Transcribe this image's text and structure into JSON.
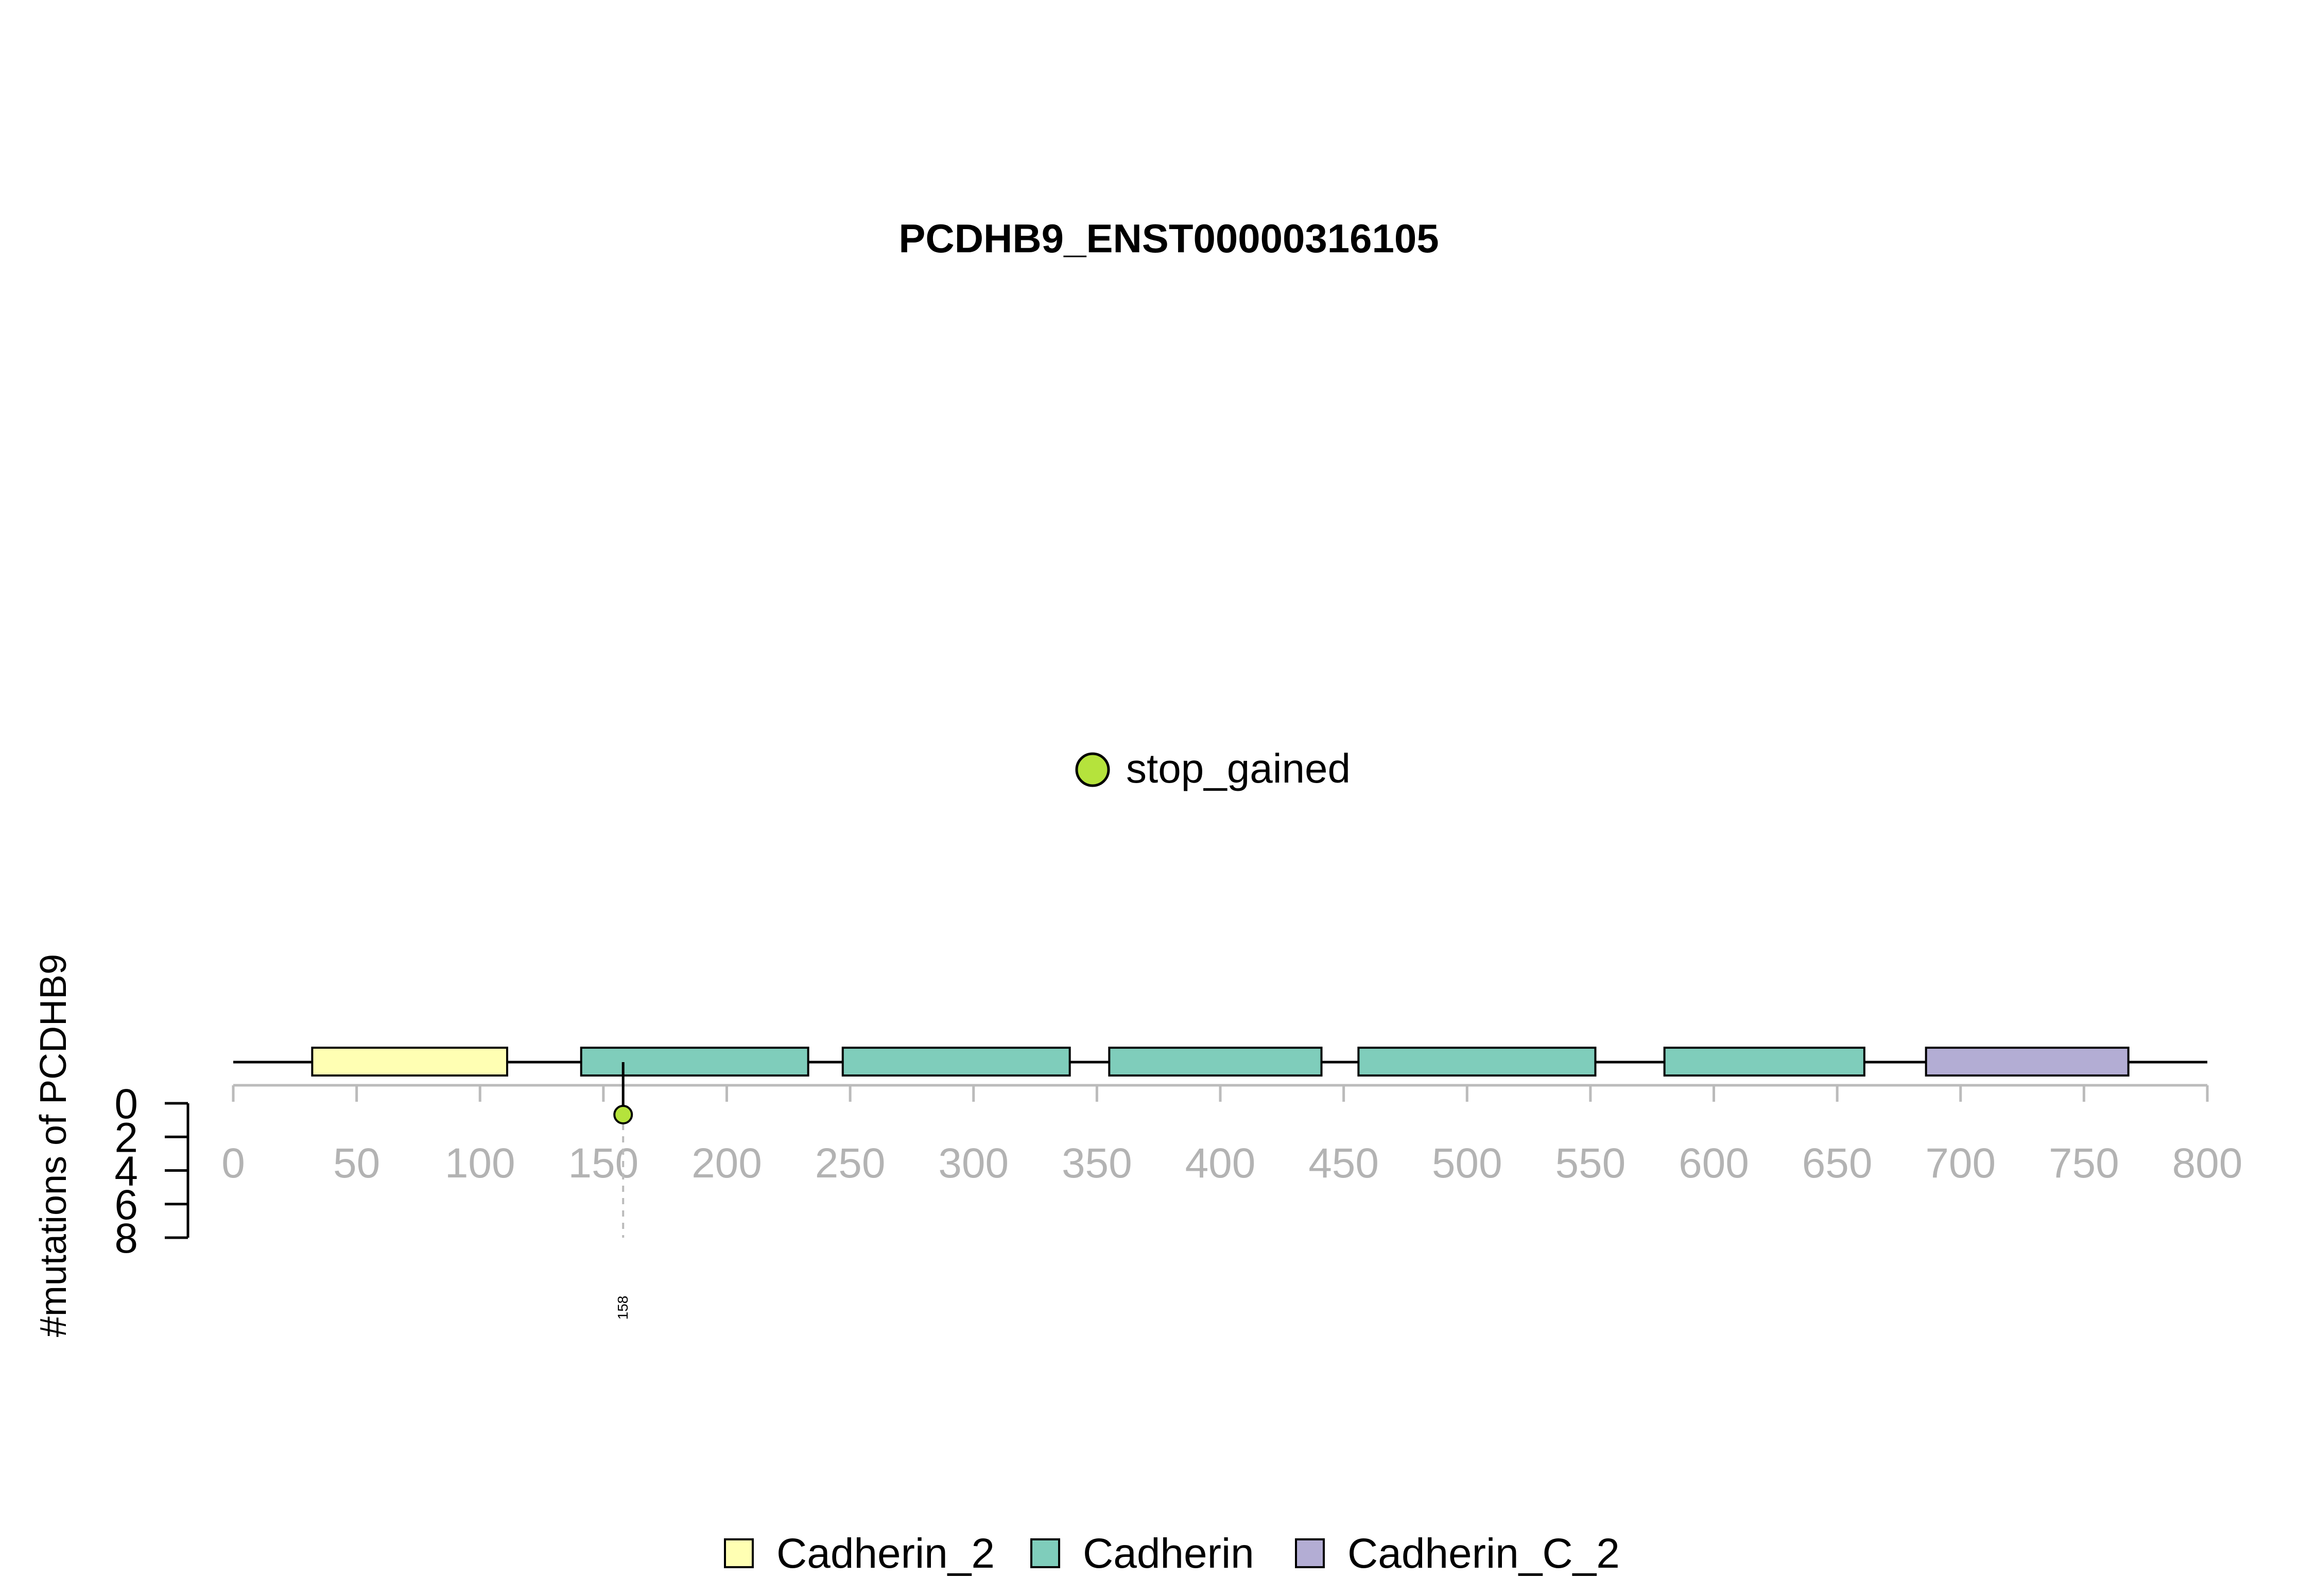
{
  "chart_data": {
    "type": "lollipop",
    "title": "PCDHB9_ENST00000316105",
    "ylabel": "#mutations of PCDHB9",
    "protein_length": 800,
    "x_ticks": [
      0,
      50,
      100,
      150,
      200,
      250,
      300,
      350,
      400,
      450,
      500,
      550,
      600,
      650,
      700,
      750,
      800
    ],
    "y_ticks": [
      0,
      2,
      4,
      6,
      8
    ],
    "ylim": [
      0,
      8
    ],
    "domains": [
      {
        "name": "Cadherin_2",
        "start": 32,
        "end": 111
      },
      {
        "name": "Cadherin",
        "start": 141,
        "end": 233
      },
      {
        "name": "Cadherin",
        "start": 247,
        "end": 339
      },
      {
        "name": "Cadherin",
        "start": 355,
        "end": 441
      },
      {
        "name": "Cadherin",
        "start": 456,
        "end": 552
      },
      {
        "name": "Cadherin",
        "start": 580,
        "end": 661
      },
      {
        "name": "Cadherin_C_2",
        "start": 686,
        "end": 768
      }
    ],
    "mutations": [
      {
        "position": 158,
        "count": 1,
        "type": "stop_gained",
        "label": "158"
      }
    ],
    "mutation_legend": [
      {
        "type": "stop_gained",
        "color": "#B5E33C"
      }
    ],
    "domain_legend": [
      {
        "name": "Cadherin_2",
        "color": "#FFFFB3"
      },
      {
        "name": "Cadherin",
        "color": "#7FCDBB"
      },
      {
        "name": "Cadherin_C_2",
        "color": "#B3ADD4"
      }
    ]
  }
}
